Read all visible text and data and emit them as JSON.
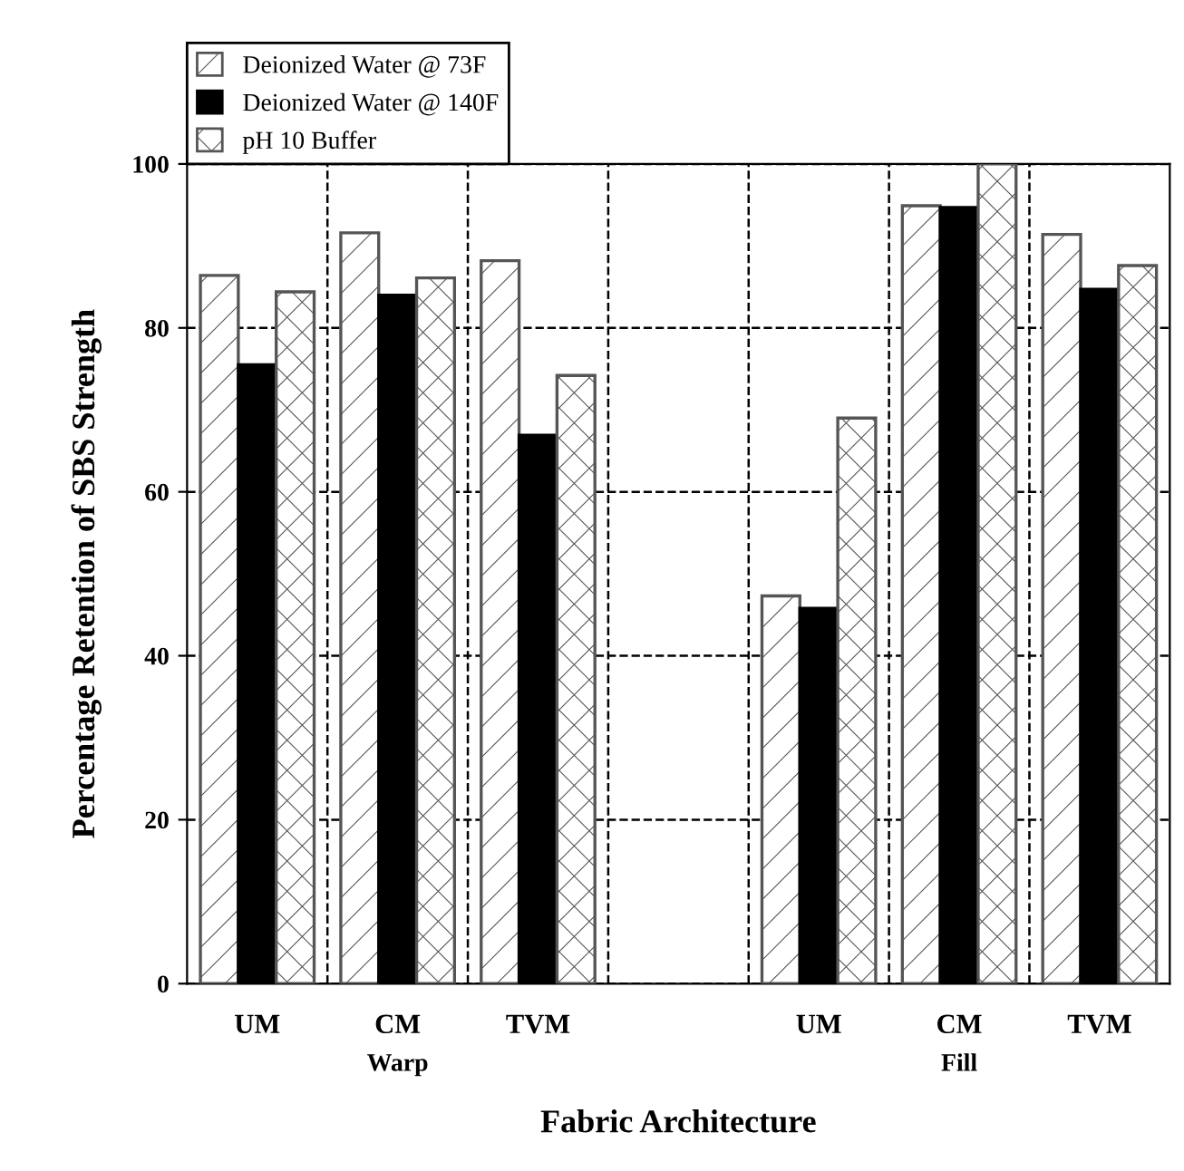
{
  "chart_data": {
    "type": "bar",
    "xlabel": "Fabric Architecture",
    "ylabel": "Percentage Retention of SBS Strength",
    "categories": [
      "UM",
      "CM",
      "TVM",
      null,
      "UM",
      "CM",
      "TVM"
    ],
    "series": [
      {
        "name": "Deionized Water @ 73F",
        "color": "#555555",
        "values": [
          86.4,
          91.6,
          88.2,
          null,
          47.3,
          94.9,
          91.4
        ]
      },
      {
        "name": "Deionized Water @ 140F",
        "color": "#000000",
        "values": [
          75.5,
          84.0,
          66.9,
          null,
          45.8,
          94.7,
          84.7
        ]
      },
      {
        "name": "pH 10 Buffer",
        "color": "#555555",
        "values": [
          84.4,
          86.1,
          74.2,
          null,
          69.0,
          100,
          87.6
        ]
      }
    ],
    "annotations": [
      "Warp",
      "Fill"
    ],
    "ylim": [
      0,
      100
    ],
    "yticks": [
      0,
      20,
      40,
      60,
      80,
      100
    ],
    "grid": true,
    "legend": "top left"
  }
}
